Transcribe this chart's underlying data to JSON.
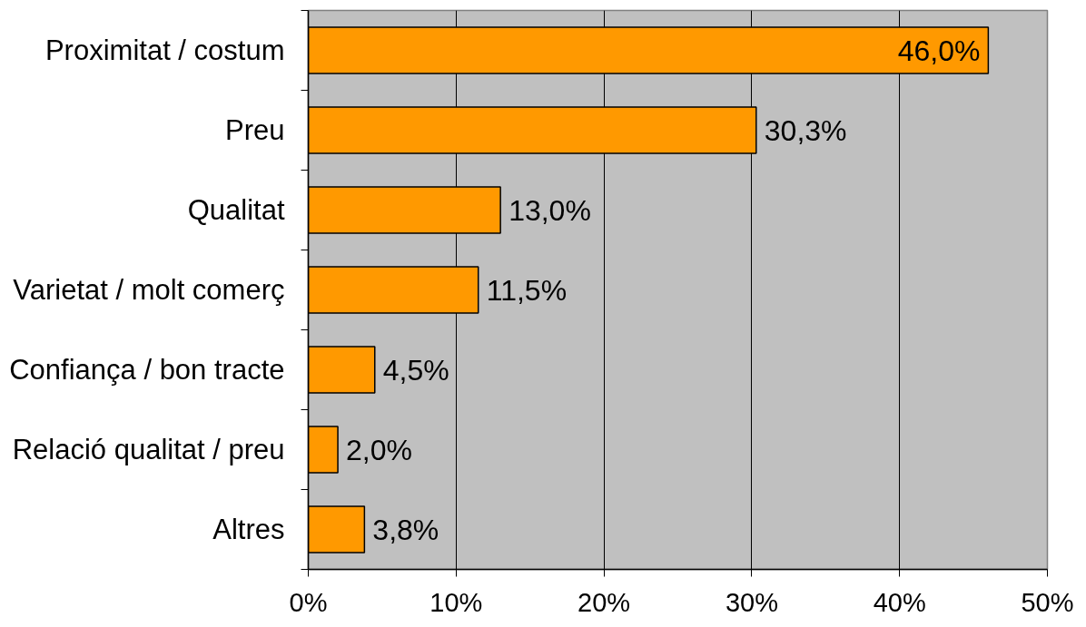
{
  "chart_data": {
    "type": "bar",
    "orientation": "horizontal",
    "categories": [
      "Proximitat / costum",
      "Preu",
      "Qualitat",
      "Varietat / molt comerç",
      "Confiança / bon tracte",
      "Relació qualitat / preu",
      "Altres"
    ],
    "values": [
      46.0,
      30.3,
      13.0,
      11.5,
      4.5,
      2.0,
      3.8
    ],
    "value_labels": [
      "46,0%",
      "30,3%",
      "13,0%",
      "11,5%",
      "4,5%",
      "2,0%",
      "3,8%"
    ],
    "color": "#ff9900",
    "xlim": [
      0,
      50
    ],
    "xticks": [
      {
        "value": 0,
        "label": "0%"
      },
      {
        "value": 10,
        "label": "10%"
      },
      {
        "value": 20,
        "label": "20%"
      },
      {
        "value": 30,
        "label": "30%"
      },
      {
        "value": 40,
        "label": "40%"
      },
      {
        "value": 50,
        "label": "50%"
      }
    ],
    "grid": "x"
  }
}
